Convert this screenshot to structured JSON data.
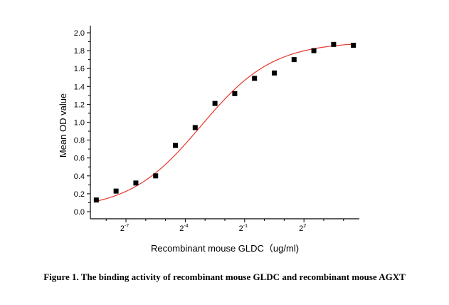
{
  "chart_data": {
    "type": "scatter",
    "xlabel": "Recombinant mouse GLDC（ug/ml)",
    "ylabel": "Mean OD value",
    "ylim": [
      0.0,
      2.0
    ],
    "y_ticks": [
      "0.0",
      "0.2",
      "0.4",
      "0.6",
      "0.8",
      "1.0",
      "1.2",
      "1.4",
      "1.6",
      "1.8",
      "2.0"
    ],
    "x_scale": "log2",
    "x_major_ticks": [
      -7,
      -4,
      -1,
      2
    ],
    "x_tick_labels": [
      {
        "base": "2",
        "exp": "-7"
      },
      {
        "base": "2",
        "exp": "-4"
      },
      {
        "base": "2",
        "exp": "-1"
      },
      {
        "base": "2",
        "exp": "2"
      }
    ],
    "xlim_log2": [
      -8.8,
      4.8
    ],
    "x_log2": [
      -8.5,
      -7.5,
      -6.5,
      -5.5,
      -4.5,
      -3.5,
      -2.5,
      -1.5,
      -0.5,
      0.5,
      1.5,
      2.5,
      3.5,
      4.5
    ],
    "y": [
      0.13,
      0.23,
      0.32,
      0.4,
      0.74,
      0.94,
      1.21,
      1.32,
      1.49,
      1.55,
      1.7,
      1.8,
      1.87,
      1.86
    ],
    "fit_curve": {
      "color": "#e8352a",
      "type": "four-parameter logistic"
    },
    "marker_color": "#000000"
  },
  "caption": "Figure 1. The binding activity of recombinant mouse  GLDC and recombinant mouse AGXT"
}
